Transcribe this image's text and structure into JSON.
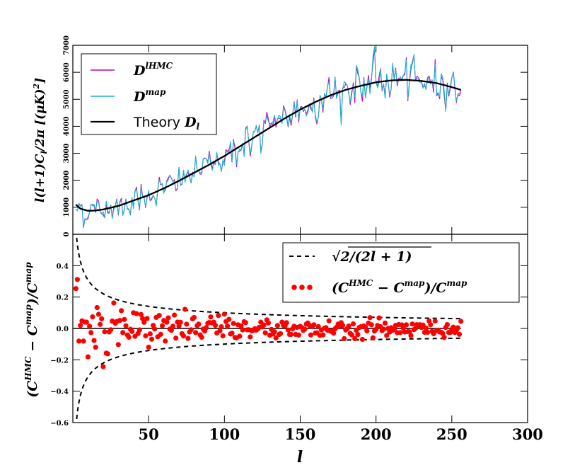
{
  "chart_data": [
    {
      "id": "top",
      "type": "line",
      "ylabel": "l(l+1)C_l/2π [(μK)^2]",
      "xlim": [
        0,
        300
      ],
      "ylim": [
        0,
        7000
      ],
      "yticks": [
        0,
        1000,
        2000,
        3000,
        4000,
        5000,
        6000,
        7000
      ],
      "ytick_labels": [
        "0",
        "1000",
        "2000",
        "3000",
        "4000",
        "5000",
        "6000",
        "7000"
      ],
      "legend": [
        {
          "label": "D_l^HMC",
          "color": "#bf00bf"
        },
        {
          "label": "D_l^map",
          "color": "#17b5c6"
        },
        {
          "label": "Theory D_l",
          "color": "#000000"
        }
      ],
      "series": [
        {
          "name": "D_l^HMC",
          "color": "#bf00bf",
          "x_range": [
            2,
            256
          ]
        },
        {
          "name": "D_l^map",
          "color": "#17b5c6",
          "x_range": [
            2,
            256
          ]
        },
        {
          "name": "Theory D_l",
          "color": "#000000",
          "x": [
            2,
            5,
            10,
            15,
            20,
            30,
            40,
            50,
            60,
            70,
            80,
            90,
            100,
            110,
            120,
            130,
            140,
            150,
            160,
            170,
            180,
            190,
            200,
            210,
            220,
            230,
            240,
            250,
            256
          ],
          "values": [
            1100,
            950,
            870,
            880,
            920,
            1050,
            1250,
            1450,
            1700,
            1980,
            2280,
            2580,
            2900,
            3250,
            3600,
            3950,
            4300,
            4620,
            4900,
            5150,
            5350,
            5500,
            5630,
            5700,
            5720,
            5680,
            5600,
            5450,
            5350
          ]
        }
      ]
    },
    {
      "id": "bottom",
      "type": "scatter",
      "xlabel": "l",
      "ylabel": "(C_l^HMC − C_l^map)/C_l^map",
      "xlim": [
        0,
        300
      ],
      "ylim": [
        -0.6,
        0.6
      ],
      "xticks": [
        50,
        100,
        150,
        200,
        250,
        300
      ],
      "xtick_labels": [
        "50",
        "100",
        "150",
        "200",
        "250",
        "300"
      ],
      "yticks": [
        -0.6,
        -0.4,
        -0.2,
        0.0,
        0.2,
        0.4
      ],
      "ytick_labels": [
        "−0.6",
        "−0.4",
        "−0.2",
        "0.0",
        "0.2",
        "0.4"
      ],
      "legend": [
        {
          "label": "√(2/(2l+1))",
          "color": "#000000"
        },
        {
          "label": "(C_l^HMC − C_l^map)/C_l^map",
          "color": "#ff0000"
        }
      ],
      "series": [
        {
          "name": "√(2/(2l+1))",
          "color": "#000000",
          "style": "dashed",
          "x_range": [
            2,
            256
          ]
        },
        {
          "name": "(C_l^HMC − C_l^map)/C_l^map",
          "color": "#ff0000",
          "marker": "circle",
          "x_range": [
            2,
            256
          ]
        }
      ]
    }
  ]
}
